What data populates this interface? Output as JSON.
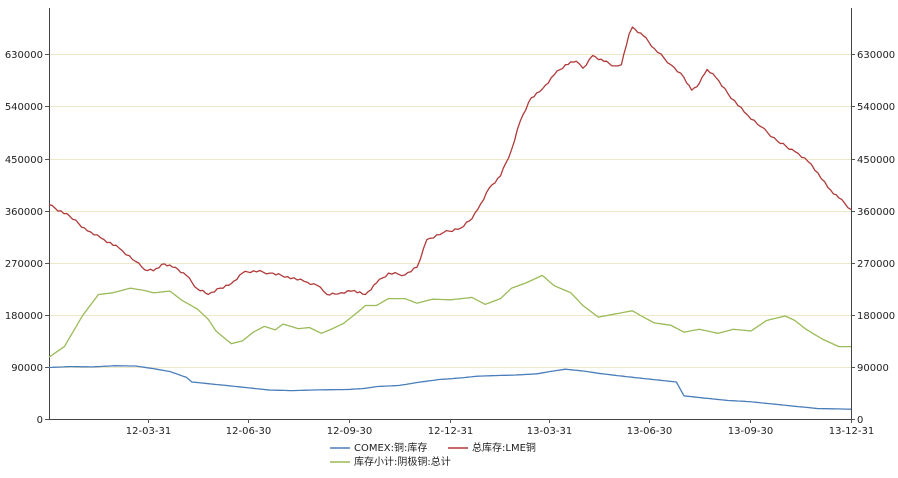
{
  "chart_data": {
    "type": "line",
    "title": "",
    "xlabel": "",
    "ylabel": "",
    "x_ticks": [
      "12-03-31",
      "12-06-30",
      "12-09-30",
      "12-12-31",
      "13-03-31",
      "13-06-30",
      "13-09-30",
      "13-12-31"
    ],
    "x_range": [
      "2012-01-01",
      "2013-12-31"
    ],
    "y_ticks": [
      0,
      90000,
      180000,
      270000,
      360000,
      450000,
      540000,
      630000
    ],
    "ylim": [
      0,
      710000
    ],
    "grid": true,
    "legend_position": "bottom",
    "series": [
      {
        "name": "COMEX:铜:库存",
        "color": "#4a7ebb",
        "points": [
          [
            "2012-01-01",
            89000
          ],
          [
            "2012-01-20",
            90500
          ],
          [
            "2012-02-10",
            90000
          ],
          [
            "2012-03-01",
            92000
          ],
          [
            "2012-03-20",
            91500
          ],
          [
            "2012-04-05",
            87000
          ],
          [
            "2012-04-20",
            82000
          ],
          [
            "2012-05-05",
            72000
          ],
          [
            "2012-05-10",
            64000
          ],
          [
            "2012-05-25",
            61000
          ],
          [
            "2012-06-10",
            58000
          ],
          [
            "2012-06-25",
            55000
          ],
          [
            "2012-07-10",
            52000
          ],
          [
            "2012-07-20",
            50000
          ],
          [
            "2012-08-10",
            49000
          ],
          [
            "2012-08-25",
            50000
          ],
          [
            "2012-09-10",
            50500
          ],
          [
            "2012-09-30",
            51000
          ],
          [
            "2012-10-15",
            53000
          ],
          [
            "2012-10-25",
            56000
          ],
          [
            "2012-11-15",
            58000
          ],
          [
            "2012-12-01",
            63000
          ],
          [
            "2012-12-20",
            68000
          ],
          [
            "2013-01-10",
            71000
          ],
          [
            "2013-01-25",
            74000
          ],
          [
            "2013-02-10",
            75000
          ],
          [
            "2013-03-01",
            76000
          ],
          [
            "2013-03-20",
            78000
          ],
          [
            "2013-04-01",
            82000
          ],
          [
            "2013-04-15",
            86000
          ],
          [
            "2013-05-01",
            83000
          ],
          [
            "2013-05-15",
            79000
          ],
          [
            "2013-06-01",
            75000
          ],
          [
            "2013-06-20",
            71000
          ],
          [
            "2013-07-10",
            67000
          ],
          [
            "2013-07-25",
            64000
          ],
          [
            "2013-08-01",
            40000
          ],
          [
            "2013-08-20",
            36000
          ],
          [
            "2013-09-10",
            32000
          ],
          [
            "2013-09-30",
            30000
          ],
          [
            "2013-10-20",
            26000
          ],
          [
            "2013-11-10",
            22000
          ],
          [
            "2013-12-01",
            18000
          ],
          [
            "2013-12-31",
            17000
          ]
        ]
      },
      {
        "name": "总库存:LME铜",
        "color": "#b03a3a",
        "points": [
          [
            "2012-01-01",
            370000
          ],
          [
            "2012-01-20",
            350000
          ],
          [
            "2012-02-05",
            325000
          ],
          [
            "2012-02-20",
            310000
          ],
          [
            "2012-03-05",
            295000
          ],
          [
            "2012-03-20",
            272000
          ],
          [
            "2012-03-28",
            258000
          ],
          [
            "2012-04-05",
            256000
          ],
          [
            "2012-04-15",
            268000
          ],
          [
            "2012-04-25",
            262000
          ],
          [
            "2012-05-05",
            248000
          ],
          [
            "2012-05-15",
            225000
          ],
          [
            "2012-05-25",
            215000
          ],
          [
            "2012-06-05",
            226000
          ],
          [
            "2012-06-15",
            234000
          ],
          [
            "2012-06-25",
            252000
          ],
          [
            "2012-07-05",
            256000
          ],
          [
            "2012-07-20",
            252000
          ],
          [
            "2012-08-05",
            246000
          ],
          [
            "2012-08-20",
            238000
          ],
          [
            "2012-09-01",
            231000
          ],
          [
            "2012-09-10",
            215000
          ],
          [
            "2012-09-20",
            216000
          ],
          [
            "2012-10-05",
            222000
          ],
          [
            "2012-10-15",
            215000
          ],
          [
            "2012-10-25",
            235000
          ],
          [
            "2012-11-05",
            252000
          ],
          [
            "2012-11-20",
            249000
          ],
          [
            "2012-12-01",
            262000
          ],
          [
            "2012-12-10",
            310000
          ],
          [
            "2012-12-25",
            322000
          ],
          [
            "2013-01-10",
            330000
          ],
          [
            "2013-01-20",
            346000
          ],
          [
            "2013-01-28",
            372000
          ],
          [
            "2013-02-05",
            400000
          ],
          [
            "2013-02-15",
            420000
          ],
          [
            "2013-02-25",
            465000
          ],
          [
            "2013-03-05",
            515000
          ],
          [
            "2013-03-15",
            555000
          ],
          [
            "2013-03-25",
            570000
          ],
          [
            "2013-04-05",
            595000
          ],
          [
            "2013-04-15",
            612000
          ],
          [
            "2013-04-25",
            618000
          ],
          [
            "2013-05-01",
            606000
          ],
          [
            "2013-05-10",
            628000
          ],
          [
            "2013-05-20",
            618000
          ],
          [
            "2013-05-30",
            610000
          ],
          [
            "2013-06-05",
            612000
          ],
          [
            "2013-06-12",
            665000
          ],
          [
            "2013-06-15",
            677000
          ],
          [
            "2013-06-25",
            662000
          ],
          [
            "2013-07-05",
            640000
          ],
          [
            "2013-07-20",
            612000
          ],
          [
            "2013-08-01",
            590000
          ],
          [
            "2013-08-08",
            568000
          ],
          [
            "2013-08-15",
            580000
          ],
          [
            "2013-08-22",
            604000
          ],
          [
            "2013-08-30",
            590000
          ],
          [
            "2013-09-10",
            562000
          ],
          [
            "2013-09-25",
            530000
          ],
          [
            "2013-10-10",
            505000
          ],
          [
            "2013-10-25",
            480000
          ],
          [
            "2013-11-10",
            462000
          ],
          [
            "2013-11-25",
            440000
          ],
          [
            "2013-12-10",
            400000
          ],
          [
            "2013-12-20",
            382000
          ],
          [
            "2013-12-31",
            362000
          ]
        ]
      },
      {
        "name": "库存小计:阴极铜:总计",
        "color": "#9bbb59",
        "points": [
          [
            "2012-01-01",
            107000
          ],
          [
            "2012-01-15",
            125000
          ],
          [
            "2012-02-01",
            180000
          ],
          [
            "2012-02-15",
            215000
          ],
          [
            "2012-02-28",
            218000
          ],
          [
            "2012-03-15",
            226000
          ],
          [
            "2012-03-28",
            222000
          ],
          [
            "2012-04-05",
            218000
          ],
          [
            "2012-04-20",
            221000
          ],
          [
            "2012-05-01",
            205000
          ],
          [
            "2012-05-15",
            190000
          ],
          [
            "2012-05-25",
            172000
          ],
          [
            "2012-06-01",
            152000
          ],
          [
            "2012-06-15",
            130000
          ],
          [
            "2012-06-25",
            135000
          ],
          [
            "2012-07-05",
            150000
          ],
          [
            "2012-07-15",
            160000
          ],
          [
            "2012-07-25",
            154000
          ],
          [
            "2012-08-01",
            164000
          ],
          [
            "2012-08-15",
            156000
          ],
          [
            "2012-08-25",
            158000
          ],
          [
            "2012-09-05",
            148000
          ],
          [
            "2012-09-15",
            156000
          ],
          [
            "2012-09-25",
            165000
          ],
          [
            "2012-10-05",
            180000
          ],
          [
            "2012-10-15",
            196000
          ],
          [
            "2012-10-25",
            196000
          ],
          [
            "2012-11-05",
            208000
          ],
          [
            "2012-11-20",
            208000
          ],
          [
            "2012-12-01",
            200000
          ],
          [
            "2012-12-15",
            207000
          ],
          [
            "2013-01-01",
            206000
          ],
          [
            "2013-01-20",
            210000
          ],
          [
            "2013-02-01",
            198000
          ],
          [
            "2013-02-15",
            208000
          ],
          [
            "2013-02-25",
            226000
          ],
          [
            "2013-03-10",
            235000
          ],
          [
            "2013-03-25",
            248000
          ],
          [
            "2013-04-05",
            230000
          ],
          [
            "2013-04-20",
            218000
          ],
          [
            "2013-05-01",
            196000
          ],
          [
            "2013-05-15",
            176000
          ],
          [
            "2013-06-01",
            182000
          ],
          [
            "2013-06-15",
            187000
          ],
          [
            "2013-06-25",
            176000
          ],
          [
            "2013-07-05",
            166000
          ],
          [
            "2013-07-20",
            162000
          ],
          [
            "2013-08-01",
            150000
          ],
          [
            "2013-08-15",
            155000
          ],
          [
            "2013-09-01",
            148000
          ],
          [
            "2013-09-15",
            155000
          ],
          [
            "2013-10-01",
            152000
          ],
          [
            "2013-10-15",
            170000
          ],
          [
            "2013-11-01",
            178000
          ],
          [
            "2013-11-10",
            170000
          ],
          [
            "2013-11-20",
            155000
          ],
          [
            "2013-12-05",
            138000
          ],
          [
            "2013-12-20",
            125000
          ],
          [
            "2013-12-31",
            125000
          ]
        ]
      }
    ]
  }
}
